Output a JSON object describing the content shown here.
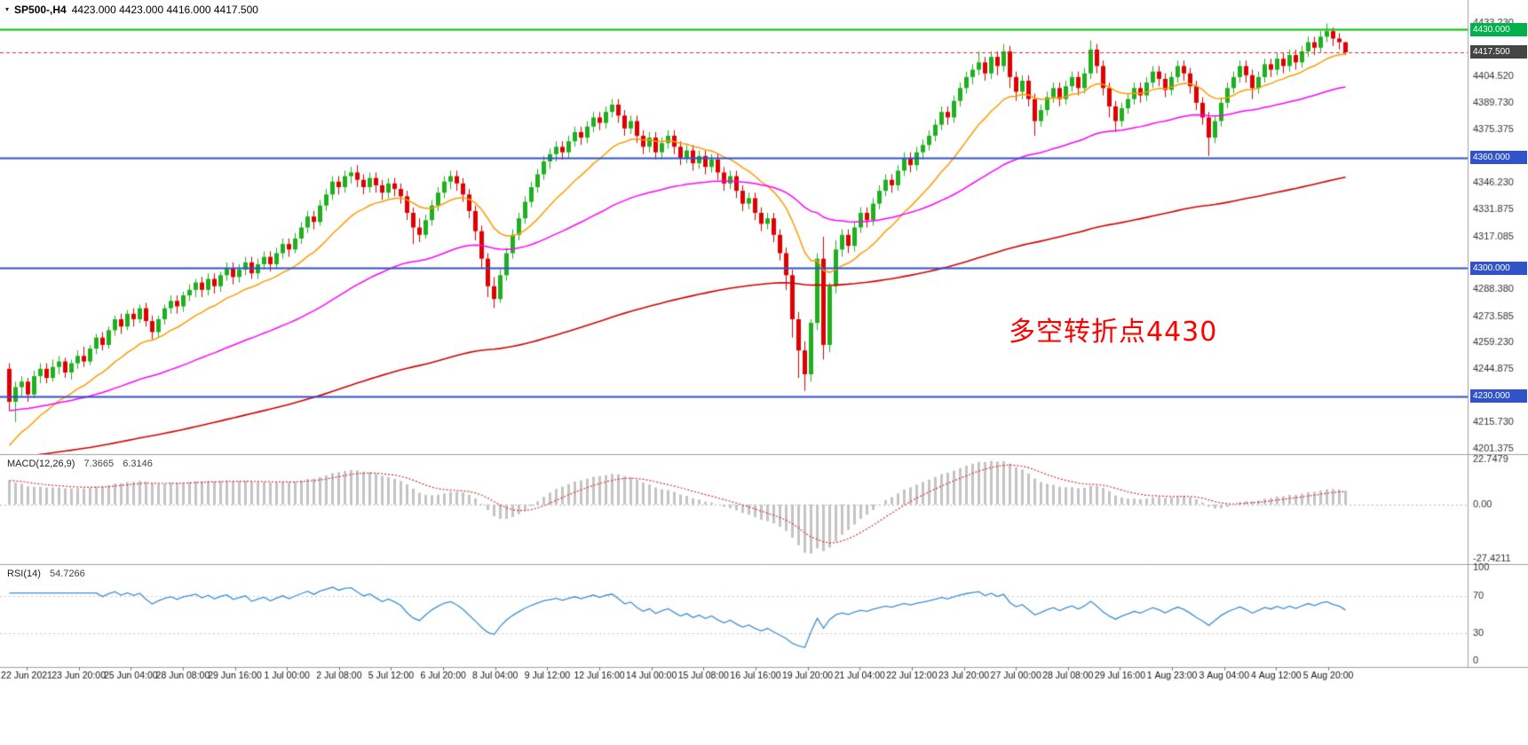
{
  "header": {
    "marker": "▾",
    "symbol": "SP500-,H4",
    "ohlc": "4423.000 4423.000 4416.000 4417.500"
  },
  "annotation": {
    "text": "多空转折点4430",
    "color": "#FF0000"
  },
  "colors": {
    "background": "#FFFFFF",
    "up": "#1EB01E",
    "down": "#E00000",
    "axis_text": "#333333",
    "time_text": "#111111",
    "divider": "#A0A0A0",
    "macd_hist": "#C4C4C4",
    "macd_signal": "#D83030",
    "rsi_line": "#3C8FD6",
    "rsi_levels": "#C8C8C8"
  },
  "chart_data": {
    "type": "candlestick",
    "symbol": "SP500-",
    "timeframe": "H4",
    "panels": [
      "price",
      "MACD",
      "RSI"
    ],
    "ohlc_current": {
      "open": 4423.0,
      "high": 4423.0,
      "low": 4416.0,
      "close": 4417.5
    },
    "price_axis": {
      "range": [
        4198.5,
        4446.0
      ],
      "ticks": [
        "4433.230",
        "4404.520",
        "4389.730",
        "4375.375",
        "4346.230",
        "4331.875",
        "4317.085",
        "4288.380",
        "4273.585",
        "4259.230",
        "4244.875",
        "4215.730",
        "4201.375"
      ]
    },
    "price_tags": [
      {
        "label": "4430.000",
        "price": 4430.0,
        "bg": "#00B04C"
      },
      {
        "label": "4417.500",
        "price": 4417.5,
        "bg": "#454545"
      },
      {
        "label": "4360.000",
        "price": 4360.0,
        "bg": "#3152C8"
      },
      {
        "label": "4300.000",
        "price": 4300.0,
        "bg": "#3152C8"
      },
      {
        "label": "4230.000",
        "price": 4230.0,
        "bg": "#3152C8"
      }
    ],
    "hlines": [
      {
        "price": 4430.0,
        "color": "#00C000",
        "width": 2,
        "dash": null,
        "meaning": "bull-bear pivot line"
      },
      {
        "price": 4360.0,
        "color": "#3152C8",
        "width": 2,
        "dash": null,
        "meaning": "support/resistance"
      },
      {
        "price": 4300.0,
        "color": "#3152C8",
        "width": 2,
        "dash": null,
        "meaning": "support/resistance"
      },
      {
        "price": 4230.0,
        "color": "#3152C8",
        "width": 2,
        "dash": null,
        "meaning": "support/resistance"
      },
      {
        "price": 4417.5,
        "color": "#E03030",
        "width": 1,
        "dash": [
          4,
          3
        ],
        "meaning": "current bid line"
      }
    ],
    "moving_averages": [
      {
        "name": "fast-ma",
        "period": 16,
        "seed": 4200,
        "color": "#FF9A00",
        "width": 1.5
      },
      {
        "name": "medium-ma",
        "period": 60,
        "seed": 4222,
        "color": "#FF00FF",
        "width": 1.5
      },
      {
        "name": "slow-ma",
        "period": 200,
        "seed": 4196,
        "color": "#D40000",
        "width": 1.6
      }
    ],
    "macd": {
      "label": "MACD(12,26,9)",
      "value": "7.3665",
      "signal_value": "6.3146",
      "fast": 12,
      "slow": 26,
      "signal_period": 9,
      "seed_fast": 4238,
      "seed_slow": 4224,
      "range": [
        -27.4211,
        22.7479
      ],
      "axis": [
        {
          "label": "22.7479",
          "v": 22.7479
        },
        {
          "label": "0.00",
          "v": 0
        },
        {
          "label": "-27.4211",
          "v": -27.4211
        }
      ]
    },
    "rsi": {
      "label": "RSI(14)",
      "value": "54.7266",
      "period": 14,
      "levels": [
        70,
        30
      ],
      "axis": [
        {
          "label": "100",
          "v": 100
        },
        {
          "label": "70",
          "v": 70
        },
        {
          "label": "30",
          "v": 30
        },
        {
          "label": "0",
          "v": 0
        }
      ]
    },
    "time_axis": [
      "22 Jun 2021",
      "23 Jun 20:00",
      "25 Jun 04:00",
      "28 Jun 08:00",
      "29 Jun 16:00",
      "1 Jul 00:00",
      "2 Jul 08:00",
      "5 Jul 12:00",
      "6 Jul 20:00",
      "8 Jul 04:00",
      "9 Jul 12:00",
      "12 Jul 16:00",
      "14 Jul 00:00",
      "15 Jul 08:00",
      "16 Jul 16:00",
      "19 Jul 20:00",
      "21 Jul 04:00",
      "22 Jul 12:00",
      "23 Jul 20:00",
      "27 Jul 00:00",
      "28 Jul 08:00",
      "29 Jul 16:00",
      "1 Aug 23:00",
      "3 Aug 04:00",
      "4 Aug 12:00",
      "5 Aug 20:00"
    ],
    "candles": [
      [
        4245,
        4248,
        4222,
        4227
      ],
      [
        4227,
        4238,
        4216,
        4235
      ],
      [
        4235,
        4241,
        4230,
        4238
      ],
      [
        4238,
        4240,
        4227,
        4231
      ],
      [
        4231,
        4244,
        4229,
        4241
      ],
      [
        4241,
        4248,
        4237,
        4245
      ],
      [
        4245,
        4248,
        4237,
        4240
      ],
      [
        4240,
        4250,
        4238,
        4246
      ],
      [
        4246,
        4252,
        4242,
        4249
      ],
      [
        4249,
        4251,
        4240,
        4243
      ],
      [
        4243,
        4250,
        4239,
        4248
      ],
      [
        4248,
        4255,
        4245,
        4252
      ],
      [
        4252,
        4257,
        4246,
        4249
      ],
      [
        4249,
        4258,
        4247,
        4256
      ],
      [
        4256,
        4264,
        4253,
        4262
      ],
      [
        4262,
        4265,
        4255,
        4258
      ],
      [
        4258,
        4268,
        4256,
        4266
      ],
      [
        4266,
        4274,
        4263,
        4272
      ],
      [
        4272,
        4275,
        4264,
        4268
      ],
      [
        4268,
        4277,
        4266,
        4275
      ],
      [
        4275,
        4278,
        4268,
        4272
      ],
      [
        4272,
        4280,
        4270,
        4278
      ],
      [
        4278,
        4281,
        4268,
        4271
      ],
      [
        4271,
        4274,
        4261,
        4265
      ],
      [
        4265,
        4274,
        4262,
        4272
      ],
      [
        4272,
        4280,
        4269,
        4278
      ],
      [
        4278,
        4285,
        4275,
        4282
      ],
      [
        4282,
        4285,
        4275,
        4279
      ],
      [
        4279,
        4287,
        4276,
        4285
      ],
      [
        4285,
        4291,
        4282,
        4288
      ],
      [
        4288,
        4294,
        4284,
        4292
      ],
      [
        4292,
        4295,
        4284,
        4288
      ],
      [
        4288,
        4297,
        4285,
        4294
      ],
      [
        4294,
        4297,
        4286,
        4290
      ],
      [
        4290,
        4298,
        4287,
        4296
      ],
      [
        4296,
        4303,
        4293,
        4300
      ],
      [
        4300,
        4303,
        4291,
        4295
      ],
      [
        4295,
        4302,
        4292,
        4299
      ],
      [
        4299,
        4306,
        4296,
        4303
      ],
      [
        4303,
        4306,
        4294,
        4297
      ],
      [
        4297,
        4305,
        4294,
        4302
      ],
      [
        4302,
        4309,
        4299,
        4306
      ],
      [
        4306,
        4309,
        4298,
        4302
      ],
      [
        4302,
        4311,
        4300,
        4308
      ],
      [
        4308,
        4316,
        4305,
        4313
      ],
      [
        4313,
        4316,
        4306,
        4310
      ],
      [
        4310,
        4319,
        4308,
        4316
      ],
      [
        4316,
        4325,
        4313,
        4322
      ],
      [
        4322,
        4331,
        4319,
        4328
      ],
      [
        4328,
        4331,
        4321,
        4325
      ],
      [
        4325,
        4337,
        4323,
        4334
      ],
      [
        4334,
        4343,
        4331,
        4340
      ],
      [
        4340,
        4350,
        4337,
        4347
      ],
      [
        4347,
        4350,
        4340,
        4344
      ],
      [
        4344,
        4353,
        4341,
        4350
      ],
      [
        4350,
        4355,
        4346,
        4352
      ],
      [
        4352,
        4356,
        4344,
        4348
      ],
      [
        4348,
        4351,
        4340,
        4344
      ],
      [
        4344,
        4352,
        4341,
        4349
      ],
      [
        4349,
        4352,
        4341,
        4345
      ],
      [
        4345,
        4348,
        4337,
        4341
      ],
      [
        4341,
        4349,
        4338,
        4346
      ],
      [
        4346,
        4349,
        4339,
        4343
      ],
      [
        4343,
        4346,
        4335,
        4339
      ],
      [
        4339,
        4342,
        4326,
        4330
      ],
      [
        4330,
        4333,
        4313,
        4322
      ],
      [
        4322,
        4327,
        4314,
        4318
      ],
      [
        4318,
        4329,
        4316,
        4326
      ],
      [
        4326,
        4337,
        4323,
        4334
      ],
      [
        4334,
        4344,
        4331,
        4341
      ],
      [
        4341,
        4350,
        4338,
        4347
      ],
      [
        4347,
        4353,
        4343,
        4350
      ],
      [
        4350,
        4353,
        4342,
        4346
      ],
      [
        4346,
        4349,
        4336,
        4340
      ],
      [
        4340,
        4343,
        4327,
        4331
      ],
      [
        4331,
        4334,
        4315,
        4320
      ],
      [
        4320,
        4323,
        4300,
        4305
      ],
      [
        4305,
        4308,
        4284,
        4290
      ],
      [
        4290,
        4295,
        4278,
        4283
      ],
      [
        4283,
        4299,
        4281,
        4296
      ],
      [
        4296,
        4311,
        4293,
        4308
      ],
      [
        4308,
        4321,
        4305,
        4318
      ],
      [
        4318,
        4330,
        4315,
        4327
      ],
      [
        4327,
        4339,
        4324,
        4336
      ],
      [
        4336,
        4347,
        4333,
        4344
      ],
      [
        4344,
        4354,
        4341,
        4351
      ],
      [
        4351,
        4361,
        4348,
        4358
      ],
      [
        4358,
        4365,
        4354,
        4362
      ],
      [
        4362,
        4369,
        4358,
        4366
      ],
      [
        4366,
        4369,
        4359,
        4363
      ],
      [
        4363,
        4372,
        4360,
        4369
      ],
      [
        4369,
        4377,
        4366,
        4374
      ],
      [
        4374,
        4377,
        4367,
        4371
      ],
      [
        4371,
        4380,
        4368,
        4377
      ],
      [
        4377,
        4385,
        4374,
        4382
      ],
      [
        4382,
        4385,
        4375,
        4379
      ],
      [
        4379,
        4388,
        4376,
        4385
      ],
      [
        4385,
        4392,
        4382,
        4389
      ],
      [
        4389,
        4392,
        4379,
        4383
      ],
      [
        4383,
        4386,
        4372,
        4376
      ],
      [
        4376,
        4383,
        4373,
        4380
      ],
      [
        4380,
        4383,
        4368,
        4372
      ],
      [
        4372,
        4375,
        4362,
        4366
      ],
      [
        4366,
        4374,
        4363,
        4371
      ],
      [
        4371,
        4374,
        4359,
        4363
      ],
      [
        4363,
        4371,
        4360,
        4368
      ],
      [
        4368,
        4375,
        4365,
        4372
      ],
      [
        4372,
        4375,
        4362,
        4366
      ],
      [
        4366,
        4369,
        4356,
        4360
      ],
      [
        4360,
        4367,
        4357,
        4364
      ],
      [
        4364,
        4367,
        4353,
        4357
      ],
      [
        4357,
        4364,
        4354,
        4361
      ],
      [
        4361,
        4364,
        4351,
        4355
      ],
      [
        4355,
        4362,
        4352,
        4359
      ],
      [
        4359,
        4362,
        4348,
        4352
      ],
      [
        4352,
        4355,
        4342,
        4346
      ],
      [
        4346,
        4353,
        4343,
        4350
      ],
      [
        4350,
        4353,
        4338,
        4342
      ],
      [
        4342,
        4345,
        4331,
        4335
      ],
      [
        4335,
        4341,
        4332,
        4338
      ],
      [
        4338,
        4341,
        4326,
        4330
      ],
      [
        4330,
        4333,
        4320,
        4324
      ],
      [
        4324,
        4330,
        4321,
        4327
      ],
      [
        4327,
        4330,
        4314,
        4318
      ],
      [
        4318,
        4321,
        4304,
        4308
      ],
      [
        4308,
        4311,
        4288,
        4296
      ],
      [
        4296,
        4299,
        4262,
        4272
      ],
      [
        4272,
        4276,
        4240,
        4255
      ],
      [
        4255,
        4260,
        4233,
        4242
      ],
      [
        4242,
        4272,
        4238,
        4270
      ],
      [
        4270,
        4308,
        4266,
        4305
      ],
      [
        4305,
        4317,
        4250,
        4258
      ],
      [
        4258,
        4292,
        4254,
        4290
      ],
      [
        4290,
        4315,
        4286,
        4310
      ],
      [
        4310,
        4321,
        4306,
        4318
      ],
      [
        4318,
        4321,
        4308,
        4312
      ],
      [
        4312,
        4325,
        4309,
        4322
      ],
      [
        4322,
        4333,
        4319,
        4330
      ],
      [
        4330,
        4333,
        4322,
        4326
      ],
      [
        4326,
        4338,
        4323,
        4335
      ],
      [
        4335,
        4345,
        4332,
        4342
      ],
      [
        4342,
        4351,
        4339,
        4348
      ],
      [
        4348,
        4351,
        4341,
        4345
      ],
      [
        4345,
        4356,
        4342,
        4353
      ],
      [
        4353,
        4363,
        4350,
        4360
      ],
      [
        4360,
        4363,
        4352,
        4356
      ],
      [
        4356,
        4366,
        4353,
        4363
      ],
      [
        4363,
        4370,
        4359,
        4367
      ],
      [
        4367,
        4375,
        4364,
        4372
      ],
      [
        4372,
        4381,
        4369,
        4378
      ],
      [
        4378,
        4388,
        4375,
        4385
      ],
      [
        4385,
        4388,
        4378,
        4382
      ],
      [
        4382,
        4394,
        4379,
        4391
      ],
      [
        4391,
        4401,
        4388,
        4398
      ],
      [
        4398,
        4407,
        4395,
        4404
      ],
      [
        4404,
        4411,
        4400,
        4408
      ],
      [
        4408,
        4418,
        4405,
        4412
      ],
      [
        4412,
        4415,
        4402,
        4406
      ],
      [
        4406,
        4418,
        4403,
        4415
      ],
      [
        4415,
        4418,
        4405,
        4410
      ],
      [
        4410,
        4422,
        4407,
        4418
      ],
      [
        4418,
        4421,
        4398,
        4404
      ],
      [
        4404,
        4407,
        4391,
        4396
      ],
      [
        4396,
        4405,
        4392,
        4402
      ],
      [
        4402,
        4405,
        4388,
        4392
      ],
      [
        4392,
        4395,
        4372,
        4380
      ],
      [
        4380,
        4389,
        4377,
        4386
      ],
      [
        4386,
        4396,
        4383,
        4393
      ],
      [
        4393,
        4401,
        4390,
        4398
      ],
      [
        4398,
        4401,
        4388,
        4392
      ],
      [
        4392,
        4402,
        4389,
        4399
      ],
      [
        4399,
        4407,
        4396,
        4404
      ],
      [
        4404,
        4407,
        4394,
        4398
      ],
      [
        4398,
        4409,
        4395,
        4406
      ],
      [
        4406,
        4424,
        4403,
        4419
      ],
      [
        4419,
        4422,
        4406,
        4410
      ],
      [
        4410,
        4413,
        4394,
        4398
      ],
      [
        4398,
        4401,
        4382,
        4388
      ],
      [
        4388,
        4391,
        4374,
        4380
      ],
      [
        4380,
        4390,
        4377,
        4387
      ],
      [
        4387,
        4395,
        4384,
        4392
      ],
      [
        4392,
        4401,
        4389,
        4398
      ],
      [
        4398,
        4401,
        4390,
        4394
      ],
      [
        4394,
        4404,
        4391,
        4401
      ],
      [
        4401,
        4410,
        4398,
        4407
      ],
      [
        4407,
        4410,
        4399,
        4403
      ],
      [
        4403,
        4406,
        4393,
        4397
      ],
      [
        4397,
        4407,
        4394,
        4404
      ],
      [
        4404,
        4413,
        4401,
        4410
      ],
      [
        4410,
        4413,
        4402,
        4406
      ],
      [
        4406,
        4409,
        4395,
        4399
      ],
      [
        4399,
        4402,
        4386,
        4390
      ],
      [
        4390,
        4393,
        4378,
        4382
      ],
      [
        4382,
        4385,
        4361,
        4371
      ],
      [
        4371,
        4383,
        4368,
        4380
      ],
      [
        4380,
        4393,
        4377,
        4390
      ],
      [
        4390,
        4401,
        4387,
        4398
      ],
      [
        4398,
        4407,
        4395,
        4404
      ],
      [
        4404,
        4413,
        4401,
        4410
      ],
      [
        4410,
        4413,
        4401,
        4405
      ],
      [
        4405,
        4408,
        4392,
        4398
      ],
      [
        4398,
        4407,
        4395,
        4404
      ],
      [
        4404,
        4414,
        4401,
        4411
      ],
      [
        4411,
        4414,
        4404,
        4408
      ],
      [
        4408,
        4417,
        4405,
        4414
      ],
      [
        4414,
        4417,
        4406,
        4410
      ],
      [
        4410,
        4419,
        4407,
        4416
      ],
      [
        4416,
        4419,
        4408,
        4412
      ],
      [
        4412,
        4421,
        4409,
        4418
      ],
      [
        4418,
        4426,
        4415,
        4423
      ],
      [
        4423,
        4426,
        4416,
        4420
      ],
      [
        4420,
        4429,
        4417,
        4426
      ],
      [
        4426,
        4433.2,
        4423,
        4429
      ],
      [
        4429,
        4431,
        4421,
        4425
      ],
      [
        4425,
        4428,
        4419,
        4423
      ],
      [
        4423,
        4423,
        4416,
        4417.5
      ]
    ]
  }
}
